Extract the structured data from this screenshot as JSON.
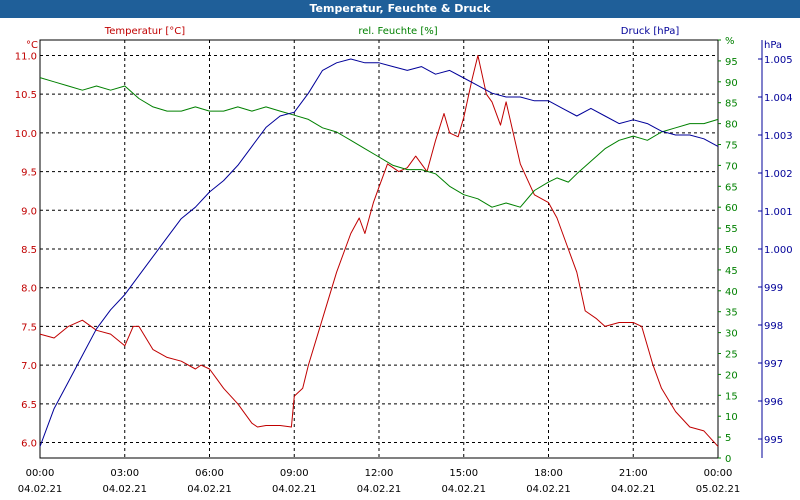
{
  "window": {
    "title": "Temperatur, Feuchte & Druck"
  },
  "chart_data": {
    "type": "line",
    "title": "Temperatur, Feuchte & Druck",
    "x_labels": [
      [
        "00:00",
        "04.02.21"
      ],
      [
        "03:00",
        "04.02.21"
      ],
      [
        "06:00",
        "04.02.21"
      ],
      [
        "09:00",
        "04.02.21"
      ],
      [
        "12:00",
        "04.02.21"
      ],
      [
        "15:00",
        "04.02.21"
      ],
      [
        "18:00",
        "04.02.21"
      ],
      [
        "21:00",
        "04.02.21"
      ],
      [
        "00:00",
        "05.02.21"
      ]
    ],
    "xlim": [
      0,
      24
    ],
    "grid": true,
    "axes": {
      "temp": {
        "unit": "°C",
        "label": "Temperatur [°C]",
        "color": "#c00000",
        "ylim": [
          5.8,
          11.2
        ],
        "ticks": [
          "6.0",
          "6.5",
          "7.0",
          "7.5",
          "8.0",
          "8.5",
          "9.0",
          "9.5",
          "10.0",
          "10.5",
          "11.0"
        ]
      },
      "hum": {
        "unit": "%",
        "label": "rel. Feuchte [%]",
        "color": "#008000",
        "ylim": [
          0,
          100
        ],
        "ticks": [
          "0",
          "5",
          "10",
          "15",
          "20",
          "25",
          "30",
          "35",
          "40",
          "45",
          "50",
          "55",
          "60",
          "65",
          "70",
          "75",
          "80",
          "85",
          "90",
          "95",
          "%"
        ]
      },
      "press": {
        "unit": "hPa",
        "label": "Druck [hPa]",
        "color": "#000099",
        "ylim": [
          994.5,
          1005.5
        ],
        "ticks": [
          "995",
          "996",
          "997",
          "998",
          "999",
          "1.000",
          "1.001",
          "1.002",
          "1.003",
          "1.004",
          "1.005"
        ]
      }
    },
    "series": [
      {
        "name": "Temperatur [°C]",
        "axis": "temp",
        "color": "#c00000",
        "x": [
          0,
          0.5,
          1,
          1.5,
          2,
          2.5,
          3,
          3.3,
          3.5,
          4,
          4.5,
          5,
          5.5,
          5.7,
          6,
          6.3,
          6.5,
          7,
          7.5,
          7.7,
          8,
          8.5,
          8.9,
          9,
          9.3,
          9.5,
          10,
          10.5,
          11,
          11.3,
          11.5,
          11.8,
          12,
          12.3,
          12.7,
          13,
          13.3,
          13.7,
          14,
          14.3,
          14.5,
          14.8,
          15,
          15.3,
          15.5,
          15.8,
          16,
          16.3,
          16.5,
          17,
          17.5,
          18,
          18.3,
          18.7,
          19,
          19.3,
          19.7,
          20,
          20.5,
          21,
          21.3,
          21.7,
          22,
          22.5,
          23,
          23.5,
          24
        ],
        "values": [
          7.4,
          7.35,
          7.5,
          7.58,
          7.45,
          7.4,
          7.25,
          7.5,
          7.5,
          7.2,
          7.1,
          7.05,
          6.95,
          7.0,
          6.95,
          6.8,
          6.7,
          6.5,
          6.25,
          6.2,
          6.22,
          6.22,
          6.2,
          6.6,
          6.7,
          7.0,
          7.6,
          8.2,
          8.7,
          8.9,
          8.7,
          9.1,
          9.3,
          9.6,
          9.5,
          9.55,
          9.7,
          9.5,
          9.9,
          10.25,
          10.0,
          9.95,
          10.2,
          10.7,
          11.0,
          10.5,
          10.4,
          10.1,
          10.4,
          9.6,
          9.2,
          9.1,
          8.9,
          8.5,
          8.2,
          7.7,
          7.6,
          7.5,
          7.55,
          7.55,
          7.5,
          7.0,
          6.7,
          6.4,
          6.2,
          6.15,
          5.95
        ]
      },
      {
        "name": "rel. Feuchte [%]",
        "axis": "hum",
        "color": "#008000",
        "x": [
          0,
          0.5,
          1,
          1.5,
          2,
          2.5,
          3,
          3.5,
          4,
          4.5,
          5,
          5.5,
          6,
          6.5,
          7,
          7.5,
          8,
          8.5,
          9,
          9.5,
          10,
          10.5,
          11,
          11.5,
          12,
          12.5,
          13,
          13.5,
          14,
          14.5,
          15,
          15.5,
          16,
          16.5,
          17,
          17.5,
          18,
          18.3,
          18.7,
          19,
          19.5,
          20,
          20.5,
          21,
          21.5,
          22,
          22.5,
          23,
          23.5,
          24
        ],
        "values": [
          91,
          90,
          89,
          88,
          89,
          88,
          89,
          86,
          84,
          83,
          83,
          84,
          83,
          83,
          84,
          83,
          84,
          83,
          82,
          81,
          79,
          78,
          76,
          74,
          72,
          70,
          69,
          69,
          68,
          65,
          63,
          62,
          60,
          61,
          60,
          64,
          66,
          67,
          66,
          68,
          71,
          74,
          76,
          77,
          76,
          78,
          79,
          80,
          80,
          81
        ]
      },
      {
        "name": "Druck [hPa]",
        "axis": "press",
        "color": "#000099",
        "x": [
          0,
          0.5,
          1,
          1.5,
          2,
          2.5,
          3,
          3.5,
          4,
          4.5,
          5,
          5.5,
          6,
          6.5,
          7,
          7.5,
          8,
          8.5,
          9,
          9.5,
          10,
          10.5,
          11,
          11.5,
          12,
          12.5,
          13,
          13.5,
          14,
          14.5,
          15,
          15.5,
          16,
          16.5,
          17,
          17.5,
          18,
          18.5,
          19,
          19.5,
          20,
          20.5,
          21,
          21.5,
          22,
          22.5,
          23,
          23.5,
          24
        ],
        "values": [
          994.8,
          995.8,
          996.5,
          997.2,
          997.9,
          998.4,
          998.8,
          999.3,
          999.8,
          1000.3,
          1000.8,
          1001.1,
          1001.5,
          1001.8,
          1002.2,
          1002.7,
          1003.2,
          1003.5,
          1003.6,
          1004.1,
          1004.7,
          1004.9,
          1005.0,
          1004.9,
          1004.9,
          1004.8,
          1004.7,
          1004.8,
          1004.6,
          1004.7,
          1004.5,
          1004.3,
          1004.1,
          1004.0,
          1004.0,
          1003.9,
          1003.9,
          1003.7,
          1003.5,
          1003.7,
          1003.5,
          1003.3,
          1003.4,
          1003.3,
          1003.1,
          1003.0,
          1003.0,
          1002.9,
          1002.7
        ]
      }
    ]
  }
}
